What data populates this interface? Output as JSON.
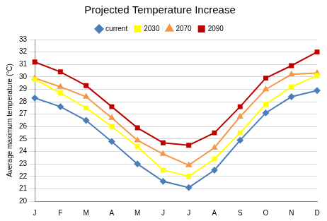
{
  "chart_data": {
    "type": "line",
    "title": "Projected Temperature Increase",
    "y_label": "Average maximum temperature (°C)",
    "categories": [
      "J",
      "F",
      "M",
      "A",
      "M",
      "J",
      "J",
      "A",
      "S",
      "O",
      "N",
      "D"
    ],
    "series": [
      {
        "name": "current",
        "color": "#4a7ebb",
        "marker": "diamond",
        "values": [
          28.3,
          27.6,
          26.5,
          24.8,
          23.0,
          21.6,
          21.1,
          22.5,
          24.9,
          27.1,
          28.4,
          28.9
        ]
      },
      {
        "name": "2030",
        "color": "#ffff00",
        "marker": "square",
        "values": [
          29.8,
          28.7,
          27.5,
          26.0,
          24.4,
          22.5,
          22.0,
          23.4,
          25.5,
          27.8,
          29.2,
          30.1
        ]
      },
      {
        "name": "2070",
        "color": "#f79646",
        "marker": "triangle",
        "values": [
          29.9,
          29.2,
          28.4,
          26.7,
          24.9,
          23.8,
          22.9,
          24.3,
          26.8,
          29.0,
          30.2,
          30.3
        ]
      },
      {
        "name": "2090",
        "color": "#c00000",
        "marker": "square",
        "values": [
          31.2,
          30.4,
          29.3,
          27.6,
          25.9,
          24.7,
          24.5,
          25.5,
          27.6,
          29.9,
          30.9,
          32.0
        ]
      }
    ],
    "ylim": [
      20,
      33
    ],
    "yticks": [
      20,
      21,
      22,
      23,
      24,
      25,
      26,
      27,
      28,
      29,
      30,
      31,
      32,
      33
    ],
    "grid": true,
    "legend": "top"
  }
}
